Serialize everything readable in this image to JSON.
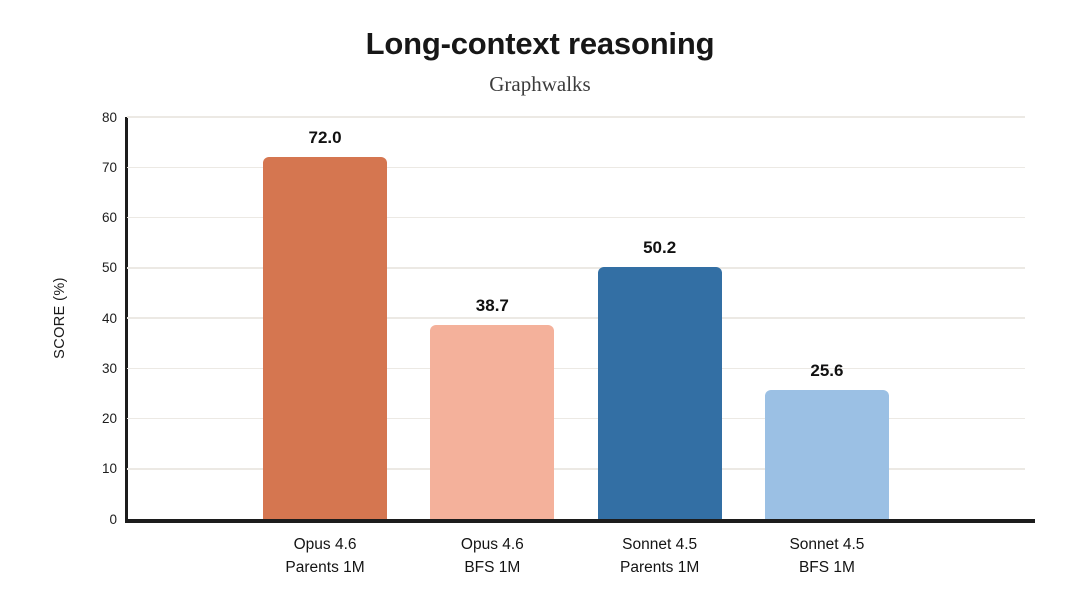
{
  "chart_data": {
    "type": "bar",
    "title": "Long-context reasoning",
    "subtitle": "Graphwalks",
    "ylabel": "SCORE (%)",
    "ylim": [
      0,
      80
    ],
    "ytick_interval": 10,
    "ytick_labels": [
      "0",
      "10",
      "20",
      "30",
      "40",
      "50",
      "60",
      "70",
      "80"
    ],
    "categories": [
      {
        "line1": "Opus 4.6",
        "line2": "Parents 1M"
      },
      {
        "line1": "Opus 4.6",
        "line2": "BFS 1M"
      },
      {
        "line1": "Sonnet 4.5",
        "line2": "Parents 1M"
      },
      {
        "line1": "Sonnet 4.5",
        "line2": "BFS 1M"
      }
    ],
    "values": [
      72.0,
      38.7,
      50.2,
      25.6
    ],
    "value_labels": [
      "72.0",
      "38.7",
      "50.2",
      "25.6"
    ],
    "bar_colors": [
      "#D57650",
      "#F4B19B",
      "#336FA4",
      "#9BC0E4"
    ],
    "grid": true,
    "legend": "none"
  },
  "colors": {
    "background": "#ffffff",
    "axis": "#1c1c1c",
    "gridline": "#ece9e4",
    "text": "#171717",
    "subtitle_text": "#3c3c3c"
  }
}
